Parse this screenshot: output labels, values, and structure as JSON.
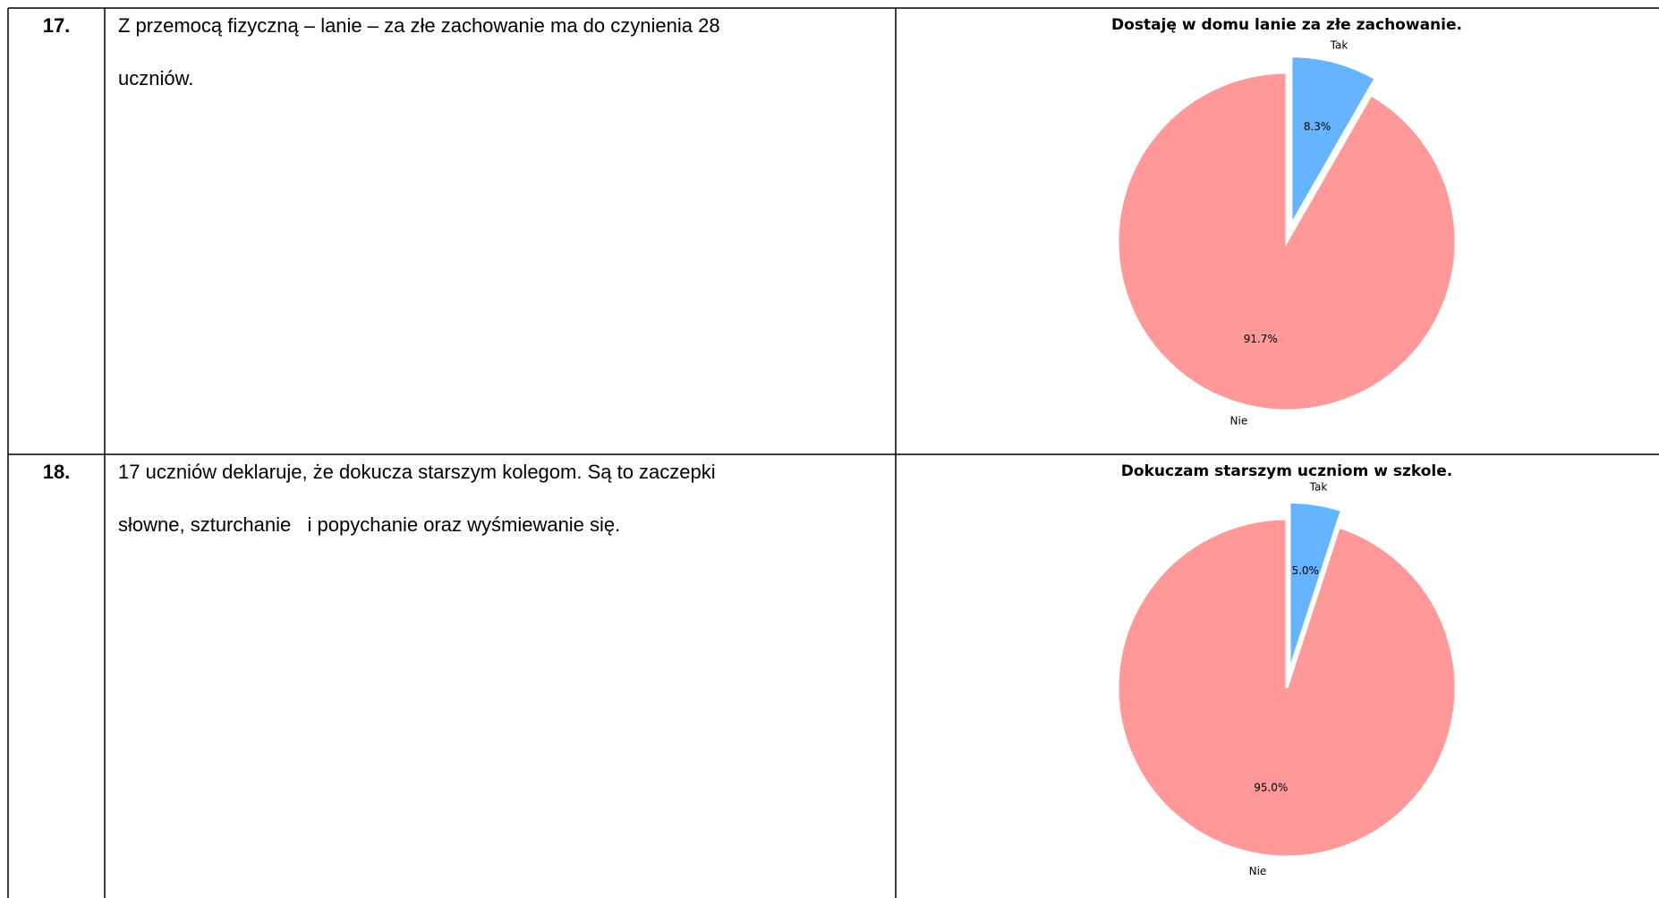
{
  "table": {
    "rows": [
      {
        "number": "17.",
        "lines": [
          "Z przemocą fizyczną – lanie – za złe zachowanie ma do czynienia 28",
          "uczniów."
        ],
        "chart": {
          "type": "pie",
          "title": "Dostaję w domu lanie za złe zachowanie.",
          "categories": [
            "Tak",
            "Nie"
          ],
          "values": [
            8.3,
            91.7
          ],
          "value_labels": [
            "8.3%",
            "91.7%"
          ],
          "colors": [
            "#66b3ff",
            "#ff9999"
          ]
        }
      },
      {
        "number": "18.",
        "lines": [
          "17 uczniów deklaruje, że dokucza starszym kolegom. Są to zaczepki",
          "słowne, szturchanie   i popychanie oraz wyśmiewanie się."
        ],
        "chart": {
          "type": "pie",
          "title": "Dokuczam starszym uczniom w szkole.",
          "categories": [
            "Tak",
            "Nie"
          ],
          "values": [
            5.0,
            95.0
          ],
          "value_labels": [
            "5.0%",
            "95.0%"
          ],
          "colors": [
            "#66b3ff",
            "#ff9999"
          ]
        }
      }
    ]
  }
}
